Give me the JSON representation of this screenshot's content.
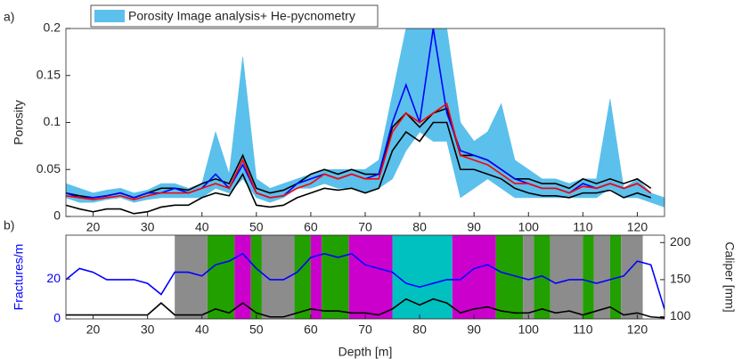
{
  "chart_data": [
    {
      "type": "line",
      "panel_label": "a)",
      "ylabel": "Porosity",
      "x": [
        15,
        17.5,
        20,
        22.5,
        25,
        27.5,
        30,
        32.5,
        35,
        37.5,
        40,
        42.5,
        45,
        47.5,
        50,
        52.5,
        55,
        57.5,
        60,
        62.5,
        65,
        67.5,
        70,
        72.5,
        75,
        77.5,
        80,
        82.5,
        85,
        87.5,
        90,
        92.5,
        95,
        97.5,
        100,
        102.5,
        105,
        107.5,
        110,
        112.5,
        115,
        117.5,
        120,
        122.5,
        125
      ],
      "xlim": [
        15,
        125
      ],
      "xticks": [
        20,
        30,
        40,
        50,
        60,
        70,
        80,
        90,
        100,
        110,
        120
      ],
      "ylim": [
        0,
        0.2
      ],
      "yticks": [
        0,
        0.05,
        0.1,
        0.15,
        0.2
      ],
      "band": {
        "name": "Porosity Image analysis+ He-pycnometry",
        "color": "#5bc0eb",
        "lower": [
          0.02,
          0.015,
          0.015,
          0.018,
          0.02,
          0.015,
          0.018,
          0.02,
          0.02,
          0.02,
          0.02,
          0.03,
          0.025,
          0.04,
          0.02,
          0.015,
          0.02,
          0.03,
          0.03,
          0.035,
          0.03,
          0.03,
          0.025,
          0.03,
          0.04,
          0.07,
          0.09,
          0.08,
          0.08,
          0.02,
          0.03,
          0.04,
          0.03,
          0.02,
          0.02,
          0.02,
          0.02,
          0.02,
          0.02,
          0.02,
          0.03,
          0.02,
          0.02,
          0.015,
          0.01
        ],
        "upper": [
          0.035,
          0.03,
          0.025,
          0.028,
          0.03,
          0.025,
          0.028,
          0.035,
          0.035,
          0.03,
          0.035,
          0.09,
          0.045,
          0.17,
          0.04,
          0.03,
          0.035,
          0.04,
          0.045,
          0.05,
          0.05,
          0.05,
          0.05,
          0.06,
          0.13,
          0.2,
          0.2,
          0.2,
          0.2,
          0.1,
          0.08,
          0.09,
          0.12,
          0.06,
          0.05,
          0.04,
          0.04,
          0.035,
          0.04,
          0.04,
          0.125,
          0.03,
          0.04,
          0.025,
          0.02
        ]
      },
      "series": [
        {
          "color": "#000000",
          "values": [
            0.025,
            0.022,
            0.02,
            0.022,
            0.025,
            0.02,
            0.025,
            0.03,
            0.03,
            0.028,
            0.035,
            0.04,
            0.035,
            0.065,
            0.03,
            0.025,
            0.028,
            0.035,
            0.045,
            0.05,
            0.045,
            0.05,
            0.045,
            0.045,
            0.095,
            0.11,
            0.095,
            0.11,
            0.115,
            0.065,
            0.065,
            0.06,
            0.05,
            0.04,
            0.04,
            0.035,
            0.035,
            0.03,
            0.04,
            0.035,
            0.04,
            0.035,
            0.04,
            0.03,
            null
          ]
        },
        {
          "color": "#000000",
          "values": [
            0.012,
            0.008,
            0.005,
            0.008,
            0.008,
            0.003,
            0.005,
            0.01,
            0.012,
            0.012,
            0.02,
            0.025,
            0.022,
            0.045,
            0.012,
            0.01,
            0.012,
            0.02,
            0.025,
            0.03,
            0.028,
            0.03,
            0.025,
            0.03,
            0.07,
            0.09,
            0.08,
            0.1,
            0.1,
            0.05,
            0.05,
            0.045,
            0.04,
            0.03,
            0.025,
            0.022,
            0.022,
            0.02,
            0.025,
            0.025,
            0.028,
            0.02,
            0.025,
            0.02,
            null
          ]
        },
        {
          "color": "#0000ff",
          "values": [
            0.025,
            0.02,
            0.02,
            0.022,
            0.025,
            0.02,
            0.025,
            0.025,
            0.03,
            0.025,
            0.03,
            0.045,
            0.03,
            0.055,
            0.025,
            0.02,
            0.022,
            0.035,
            0.04,
            0.045,
            0.04,
            0.045,
            0.04,
            0.045,
            0.1,
            0.14,
            0.1,
            0.2,
            0.11,
            0.07,
            0.065,
            0.06,
            0.05,
            0.04,
            0.035,
            0.03,
            0.03,
            0.025,
            0.035,
            0.03,
            0.035,
            0.03,
            0.035,
            0.025,
            null
          ]
        },
        {
          "color": "#ff0000",
          "values": [
            0.022,
            0.02,
            0.018,
            0.02,
            0.022,
            0.018,
            0.022,
            0.025,
            0.025,
            0.025,
            0.03,
            0.035,
            0.03,
            0.06,
            0.025,
            0.02,
            0.022,
            0.03,
            0.035,
            0.045,
            0.04,
            0.045,
            0.04,
            0.04,
            0.09,
            0.11,
            0.1,
            0.11,
            0.12,
            0.065,
            0.06,
            0.055,
            0.045,
            0.035,
            0.035,
            0.03,
            0.03,
            0.025,
            0.032,
            0.03,
            0.035,
            0.03,
            0.035,
            0.025,
            null
          ]
        }
      ]
    },
    {
      "type": "line",
      "panel_label": "b)",
      "xlabel": "Depth [m]",
      "ylabel": "Fractures/m",
      "y2label": "Caliper [mm]",
      "x": [
        15,
        17.5,
        20,
        22.5,
        25,
        27.5,
        30,
        32.5,
        35,
        37.5,
        40,
        42.5,
        45,
        47.5,
        50,
        52.5,
        55,
        57.5,
        60,
        62.5,
        65,
        67.5,
        70,
        72.5,
        75,
        77.5,
        80,
        82.5,
        85,
        87.5,
        90,
        92.5,
        95,
        97.5,
        100,
        102.5,
        105,
        107.5,
        110,
        112.5,
        115,
        117.5,
        120,
        122.5,
        125
      ],
      "xlim": [
        15,
        125
      ],
      "xticks": [
        20,
        30,
        40,
        50,
        60,
        70,
        80,
        90,
        100,
        110,
        120
      ],
      "ylim": [
        0,
        42
      ],
      "yticks": [
        0,
        20
      ],
      "y2lim": [
        97,
        210
      ],
      "y2ticks": [
        100,
        150,
        200
      ],
      "zones": [
        {
          "start": 35,
          "end": 41,
          "color": "#8c8c8c"
        },
        {
          "start": 41,
          "end": 46,
          "color": "#22a000"
        },
        {
          "start": 46,
          "end": 49,
          "color": "#cc00cc"
        },
        {
          "start": 49,
          "end": 51,
          "color": "#22a000"
        },
        {
          "start": 51,
          "end": 57,
          "color": "#8c8c8c"
        },
        {
          "start": 57,
          "end": 60,
          "color": "#22a000"
        },
        {
          "start": 60,
          "end": 62,
          "color": "#cc00cc"
        },
        {
          "start": 62,
          "end": 67,
          "color": "#22a000"
        },
        {
          "start": 67,
          "end": 75,
          "color": "#cc00cc"
        },
        {
          "start": 75,
          "end": 86,
          "color": "#00c0c0"
        },
        {
          "start": 86,
          "end": 94,
          "color": "#cc00cc"
        },
        {
          "start": 94,
          "end": 99,
          "color": "#22a000"
        },
        {
          "start": 99,
          "end": 101,
          "color": "#8c8c8c"
        },
        {
          "start": 101,
          "end": 104,
          "color": "#22a000"
        },
        {
          "start": 104,
          "end": 110,
          "color": "#8c8c8c"
        },
        {
          "start": 110,
          "end": 112,
          "color": "#22a000"
        },
        {
          "start": 112,
          "end": 115,
          "color": "#8c8c8c"
        },
        {
          "start": 115,
          "end": 117,
          "color": "#22a000"
        },
        {
          "start": 117,
          "end": 121,
          "color": "#8c8c8c"
        }
      ],
      "series": [
        {
          "color": "#000000",
          "values": [
            2,
            2,
            2,
            2,
            2,
            2,
            2,
            8,
            2,
            2,
            2,
            5,
            3,
            8,
            3,
            1,
            1,
            3,
            5,
            4,
            4,
            3,
            3,
            2,
            5,
            10,
            7,
            10,
            8,
            3,
            5,
            6,
            4,
            3,
            3,
            5,
            3,
            4,
            2,
            4,
            6,
            2,
            3,
            1,
            0.5
          ]
        },
        {
          "color": "#0000ff",
          "axis": "y2",
          "values": [
            150,
            165,
            160,
            150,
            150,
            150,
            145,
            130,
            160,
            160,
            155,
            170,
            175,
            185,
            165,
            150,
            150,
            160,
            180,
            185,
            180,
            185,
            170,
            165,
            160,
            145,
            140,
            145,
            150,
            150,
            165,
            170,
            160,
            155,
            150,
            155,
            145,
            150,
            150,
            145,
            150,
            155,
            175,
            170,
            110
          ]
        }
      ]
    }
  ]
}
